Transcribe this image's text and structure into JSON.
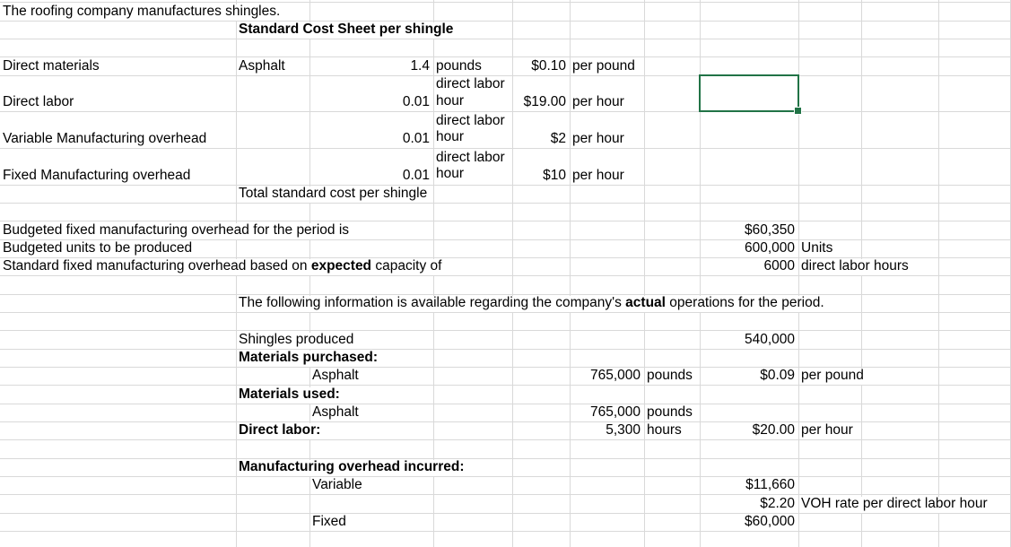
{
  "sheet": {
    "colors": {
      "background": "#ffffff",
      "gridline": "#d9d9d9",
      "text": "#000000",
      "selection_border": "#217346"
    },
    "selection": {
      "cell_ref": "H5",
      "col": "H",
      "row": 5
    },
    "cells": [
      {
        "r": 1,
        "c": "A",
        "t": "The roofing company manufactures shingles."
      },
      {
        "r": 2,
        "c": "B",
        "t": "Standard Cost Sheet per shingle",
        "b": 1
      },
      {
        "r": 4,
        "c": "A",
        "t": "Direct materials"
      },
      {
        "r": 4,
        "c": "B",
        "t": "Asphalt"
      },
      {
        "r": 4,
        "c": "C",
        "t": "1.4",
        "a": "r"
      },
      {
        "r": 4,
        "c": "D",
        "t": "pounds"
      },
      {
        "r": 4,
        "c": "E",
        "t": "$0.10",
        "a": "r"
      },
      {
        "r": 4,
        "c": "F",
        "t": "per pound"
      },
      {
        "r": 5,
        "c": "A",
        "t": "Direct labor"
      },
      {
        "r": 5,
        "c": "C",
        "t": "0.01",
        "a": "r"
      },
      {
        "r": 5,
        "c": "D",
        "t": "direct labor hour",
        "w": 1
      },
      {
        "r": 5,
        "c": "E",
        "t": "$19.00",
        "a": "r"
      },
      {
        "r": 5,
        "c": "F",
        "t": "per hour"
      },
      {
        "r": 6,
        "c": "A",
        "t": "Variable Manufacturing overhead"
      },
      {
        "r": 6,
        "c": "C",
        "t": "0.01",
        "a": "r"
      },
      {
        "r": 6,
        "c": "D",
        "t": "direct labor hour",
        "w": 1
      },
      {
        "r": 6,
        "c": "E",
        "t": "$2",
        "a": "r"
      },
      {
        "r": 6,
        "c": "F",
        "t": "per hour"
      },
      {
        "r": 7,
        "c": "A",
        "t": "Fixed Manufacturing overhead"
      },
      {
        "r": 7,
        "c": "C",
        "t": "0.01",
        "a": "r"
      },
      {
        "r": 7,
        "c": "D",
        "t": "direct labor hour",
        "w": 1
      },
      {
        "r": 7,
        "c": "E",
        "t": "$10",
        "a": "r"
      },
      {
        "r": 7,
        "c": "F",
        "t": "per hour"
      },
      {
        "r": 8,
        "c": "B",
        "t": "Total standard cost per shingle"
      },
      {
        "r": 10,
        "c": "A",
        "t": "Budgeted fixed manufacturing overhead for the period is"
      },
      {
        "r": 10,
        "c": "H",
        "t": "$60,350",
        "a": "r"
      },
      {
        "r": 11,
        "c": "A",
        "t": "Budgeted units to be produced"
      },
      {
        "r": 11,
        "c": "H",
        "t": "600,000",
        "a": "r"
      },
      {
        "r": 11,
        "c": "I",
        "t": "Units"
      },
      {
        "r": 12,
        "c": "A",
        "rich": [
          {
            "t": "Standard fixed manufacturing overhead based on "
          },
          {
            "t": "expected",
            "b": 1
          },
          {
            "t": " capacity of"
          }
        ]
      },
      {
        "r": 12,
        "c": "H",
        "t": "6000",
        "a": "r"
      },
      {
        "r": 12,
        "c": "I",
        "t": "direct labor hours"
      },
      {
        "r": 14,
        "c": "B",
        "rich": [
          {
            "t": "The following information is available regarding the company's "
          },
          {
            "t": "actual",
            "b": 1
          },
          {
            "t": " operations for the period."
          }
        ]
      },
      {
        "r": 16,
        "c": "B",
        "t": "Shingles produced"
      },
      {
        "r": 16,
        "c": "H",
        "t": "540,000",
        "a": "r"
      },
      {
        "r": 17,
        "c": "B",
        "t": "Materials purchased:",
        "b": 1
      },
      {
        "r": 18,
        "c": "C",
        "t": "Asphalt"
      },
      {
        "r": 18,
        "c": "F",
        "t": "765,000",
        "a": "r"
      },
      {
        "r": 18,
        "c": "G",
        "t": "pounds"
      },
      {
        "r": 18,
        "c": "H",
        "t": "$0.09",
        "a": "r"
      },
      {
        "r": 18,
        "c": "I",
        "t": "per pound"
      },
      {
        "r": 19,
        "c": "B",
        "t": "Materials used:",
        "b": 1
      },
      {
        "r": 20,
        "c": "C",
        "t": "Asphalt"
      },
      {
        "r": 20,
        "c": "F",
        "t": "765,000",
        "a": "r"
      },
      {
        "r": 20,
        "c": "G",
        "t": "pounds"
      },
      {
        "r": 21,
        "c": "B",
        "t": "Direct labor:",
        "b": 1
      },
      {
        "r": 21,
        "c": "F",
        "t": "5,300",
        "a": "r"
      },
      {
        "r": 21,
        "c": "G",
        "t": "hours"
      },
      {
        "r": 21,
        "c": "H",
        "t": "$20.00",
        "a": "r"
      },
      {
        "r": 21,
        "c": "I",
        "t": "per hour"
      },
      {
        "r": 23,
        "c": "B",
        "t": "Manufacturing overhead incurred:",
        "b": 1
      },
      {
        "r": 24,
        "c": "C",
        "t": "Variable"
      },
      {
        "r": 24,
        "c": "H",
        "t": "$11,660",
        "a": "r"
      },
      {
        "r": 25,
        "c": "H",
        "t": "$2.20",
        "a": "r"
      },
      {
        "r": 25,
        "c": "I",
        "t": "VOH rate per direct labor hour"
      },
      {
        "r": 26,
        "c": "C",
        "t": "Fixed"
      },
      {
        "r": 26,
        "c": "H",
        "t": "$60,000",
        "a": "r"
      }
    ]
  }
}
